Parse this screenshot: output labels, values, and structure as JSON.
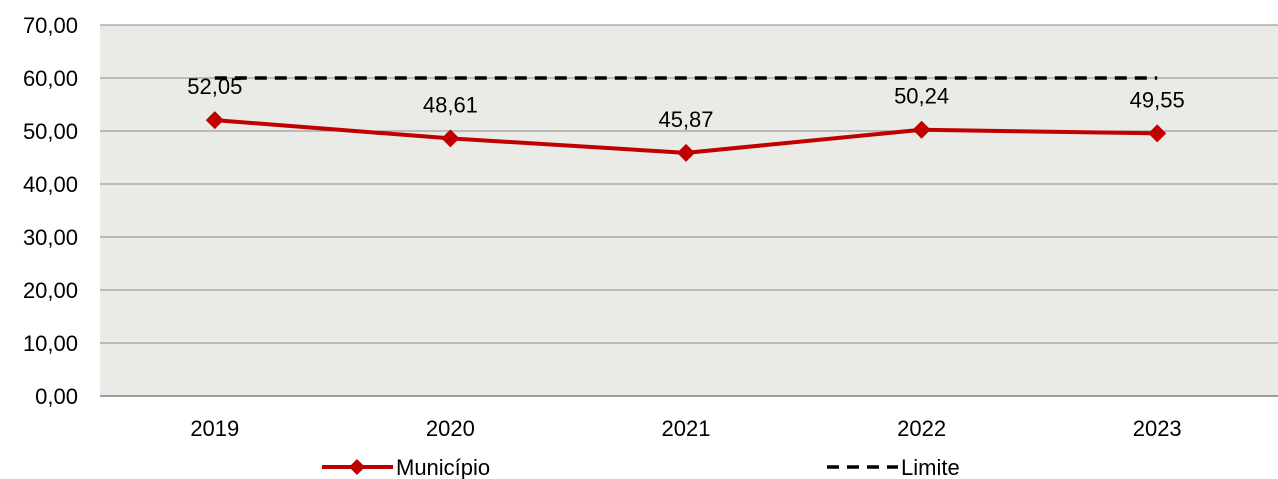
{
  "chart_data": {
    "type": "line",
    "categories": [
      "2019",
      "2020",
      "2021",
      "2022",
      "2023"
    ],
    "series": [
      {
        "name": "Município",
        "values": [
          52.05,
          48.61,
          45.87,
          50.24,
          49.55
        ],
        "data_labels": [
          "52,05",
          "48,61",
          "45,87",
          "50,24",
          "49,55"
        ],
        "color": "#C00000",
        "marker": "diamond"
      },
      {
        "name": "Limite",
        "values": [
          60,
          60,
          60,
          60,
          60
        ],
        "color": "#000000",
        "style": "dashed"
      }
    ],
    "ylim": [
      0,
      70
    ],
    "yticks": [
      "0,00",
      "10,00",
      "20,00",
      "30,00",
      "40,00",
      "50,00",
      "60,00",
      "70,00"
    ],
    "ytick_values": [
      0,
      10,
      20,
      30,
      40,
      50,
      60,
      70
    ],
    "grid": true,
    "legend": "bottom",
    "plot_background": "#EAEAE6"
  }
}
